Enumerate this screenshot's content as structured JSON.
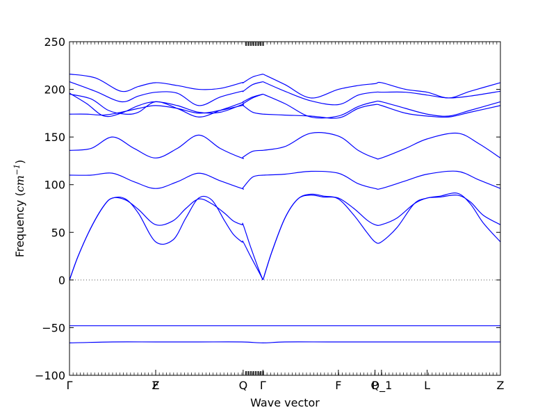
{
  "chart_data": {
    "type": "line",
    "title": "",
    "xlabel": "Wave vector",
    "ylabel": "Frequency",
    "ylabel_unit": "cm",
    "ylabel_unit_exp": "−1",
    "ylim": [
      -100,
      250
    ],
    "xlim": [
      0,
      1
    ],
    "yticks": [
      -100,
      -50,
      0,
      50,
      100,
      150,
      200,
      250
    ],
    "ytick_labels": [
      "−100",
      "−50",
      "0",
      "50",
      "100",
      "150",
      "200",
      "250"
    ],
    "grid": false,
    "legend": "none",
    "line_color": "#0000ff",
    "zero_line": {
      "y": 0,
      "style": "dotted",
      "color": "#555555"
    },
    "high_symmetry_points": [
      {
        "label": "Γ",
        "x": 0.0
      },
      {
        "label": "F",
        "x": 0.2
      },
      {
        "label": "Z",
        "x": 0.2
      },
      {
        "label": "Q",
        "x": 0.403
      },
      {
        "label": "Γ",
        "x": 0.449
      },
      {
        "label": "F",
        "x": 0.624
      },
      {
        "label": "P",
        "x": 0.709
      },
      {
        "label": "Q_1",
        "x": 0.724
      },
      {
        "label": "L",
        "x": 0.83
      },
      {
        "label": "Z",
        "x": 1.0
      }
    ],
    "series": [
      {
        "x": [
          0,
          0.02,
          0.05,
          0.08,
          0.1,
          0.13,
          0.16,
          0.2,
          0.24,
          0.27,
          0.3,
          0.33,
          0.36,
          0.38,
          0.4,
          0.403,
          0.42,
          0.44,
          0.449
        ],
        "y": [
          0,
          25,
          55,
          78,
          86,
          85,
          70,
          40,
          42,
          65,
          86,
          84,
          62,
          48,
          40,
          40,
          25,
          8,
          0
        ]
      },
      {
        "x": [
          0,
          0.02,
          0.05,
          0.08,
          0.1,
          0.13,
          0.16,
          0.2,
          0.24,
          0.27,
          0.3,
          0.33,
          0.36,
          0.38,
          0.4,
          0.403,
          0.42,
          0.44,
          0.449
        ],
        "y": [
          0,
          25,
          55,
          78,
          86,
          84,
          74,
          58,
          62,
          75,
          85,
          80,
          70,
          62,
          58,
          58,
          35,
          10,
          0
        ]
      },
      {
        "x": [
          0.449,
          0.47,
          0.5,
          0.53,
          0.56,
          0.59,
          0.624,
          0.66,
          0.69,
          0.709,
          0.724,
          0.76,
          0.8,
          0.83,
          0.86,
          0.9,
          0.93,
          0.96,
          1.0
        ],
        "y": [
          0,
          30,
          65,
          85,
          90,
          88,
          85,
          68,
          50,
          40,
          40,
          55,
          80,
          86,
          88,
          91,
          80,
          60,
          40
        ]
      },
      {
        "x": [
          0.449,
          0.47,
          0.5,
          0.53,
          0.56,
          0.59,
          0.624,
          0.66,
          0.69,
          0.709,
          0.724,
          0.76,
          0.8,
          0.83,
          0.86,
          0.9,
          0.93,
          0.96,
          1.0
        ],
        "y": [
          0,
          30,
          65,
          85,
          89,
          87,
          86,
          75,
          63,
          58,
          58,
          65,
          80,
          86,
          87,
          89,
          82,
          68,
          58
        ]
      },
      {
        "x": [
          0,
          0.05,
          0.1,
          0.15,
          0.2,
          0.25,
          0.3,
          0.35,
          0.4,
          0.403,
          0.425,
          0.449
        ],
        "y": [
          110,
          110,
          112,
          103,
          96,
          103,
          112,
          104,
          96,
          97,
          108,
          110
        ]
      },
      {
        "x": [
          0.449,
          0.5,
          0.56,
          0.624,
          0.67,
          0.709,
          0.724,
          0.78,
          0.83,
          0.9,
          0.95,
          1.0
        ],
        "y": [
          110,
          111,
          114,
          112,
          101,
          96,
          96,
          104,
          111,
          114,
          105,
          96
        ]
      },
      {
        "x": [
          0,
          0.05,
          0.1,
          0.15,
          0.2,
          0.25,
          0.3,
          0.35,
          0.4,
          0.403,
          0.425,
          0.449
        ],
        "y": [
          136,
          138,
          150,
          138,
          128,
          138,
          152,
          138,
          128,
          129,
          135,
          136
        ]
      },
      {
        "x": [
          0.449,
          0.5,
          0.56,
          0.624,
          0.67,
          0.709,
          0.724,
          0.78,
          0.83,
          0.9,
          0.95,
          1.0
        ],
        "y": [
          136,
          140,
          154,
          151,
          136,
          128,
          128,
          138,
          148,
          154,
          143,
          128
        ]
      },
      {
        "x": [
          0,
          0.04,
          0.08,
          0.12,
          0.16,
          0.2,
          0.25,
          0.3,
          0.35,
          0.4,
          0.403,
          0.425,
          0.449
        ],
        "y": [
          174,
          174,
          173,
          176,
          180,
          183,
          180,
          175,
          178,
          183,
          183,
          176,
          174
        ]
      },
      {
        "x": [
          0,
          0.05,
          0.09,
          0.13,
          0.16,
          0.2,
          0.25,
          0.3,
          0.35,
          0.4,
          0.403,
          0.425,
          0.449
        ],
        "y": [
          195,
          190,
          178,
          174,
          176,
          187,
          180,
          171,
          178,
          186,
          187,
          192,
          195
        ]
      },
      {
        "x": [
          0,
          0.04,
          0.08,
          0.12,
          0.16,
          0.2,
          0.25,
          0.3,
          0.35,
          0.4,
          0.403,
          0.425,
          0.449
        ],
        "y": [
          196,
          185,
          172,
          175,
          183,
          187,
          183,
          176,
          176,
          184,
          185,
          191,
          195
        ]
      },
      {
        "x": [
          0,
          0.06,
          0.12,
          0.16,
          0.2,
          0.25,
          0.3,
          0.35,
          0.4,
          0.403,
          0.425,
          0.449
        ],
        "y": [
          208,
          198,
          187,
          193,
          197,
          196,
          183,
          192,
          198,
          198,
          205,
          208
        ]
      },
      {
        "x": [
          0,
          0.06,
          0.12,
          0.16,
          0.2,
          0.25,
          0.3,
          0.35,
          0.4,
          0.403,
          0.425,
          0.449
        ],
        "y": [
          216,
          212,
          198,
          203,
          207,
          204,
          200,
          201,
          207,
          207,
          213,
          216
        ]
      },
      {
        "x": [
          0.449,
          0.5,
          0.56,
          0.624,
          0.67,
          0.709,
          0.724,
          0.78,
          0.83,
          0.88,
          0.93,
          1.0
        ],
        "y": [
          174,
          173,
          172,
          170,
          180,
          184,
          183,
          175,
          172,
          171,
          176,
          183
        ]
      },
      {
        "x": [
          0.449,
          0.5,
          0.56,
          0.624,
          0.67,
          0.709,
          0.724,
          0.78,
          0.83,
          0.88,
          0.93,
          1.0
        ],
        "y": [
          195,
          185,
          171,
          172,
          182,
          187,
          187,
          180,
          174,
          172,
          178,
          187
        ]
      },
      {
        "x": [
          0.449,
          0.5,
          0.56,
          0.624,
          0.67,
          0.709,
          0.724,
          0.78,
          0.83,
          0.88,
          0.93,
          1.0
        ],
        "y": [
          208,
          198,
          188,
          184,
          194,
          197,
          197,
          197,
          194,
          191,
          193,
          198
        ]
      },
      {
        "x": [
          0.449,
          0.5,
          0.56,
          0.624,
          0.67,
          0.709,
          0.724,
          0.78,
          0.83,
          0.88,
          0.93,
          1.0
        ],
        "y": [
          216,
          205,
          191,
          200,
          204,
          206,
          207,
          200,
          197,
          191,
          198,
          207
        ]
      },
      {
        "x": [
          0,
          0.1,
          0.2,
          0.3,
          0.4,
          0.449,
          0.5,
          0.6,
          0.7,
          0.8,
          0.9,
          1.0
        ],
        "y": [
          -48,
          -48,
          -48,
          -48,
          -48,
          -48,
          -48,
          -48,
          -48,
          -48,
          -48,
          -48
        ]
      },
      {
        "x": [
          0,
          0.1,
          0.2,
          0.3,
          0.4,
          0.449,
          0.5,
          0.6,
          0.7,
          0.8,
          0.9,
          1.0
        ],
        "y": [
          -66,
          -65,
          -65,
          -65,
          -65,
          -66,
          -65,
          -65,
          -65,
          -65,
          -65,
          -65
        ]
      }
    ]
  }
}
